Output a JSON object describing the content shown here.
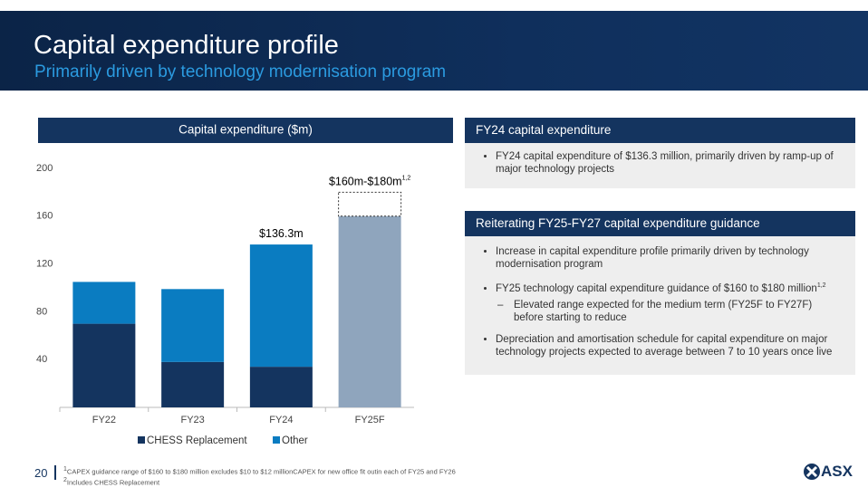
{
  "header": {
    "title": "Capital expenditure profile",
    "subtitle": "Primarily driven by technology modernisation program"
  },
  "chart_data": {
    "type": "bar",
    "stacked": true,
    "title": "Capital expenditure ($m)",
    "categories": [
      "FY22",
      "FY23",
      "FY24",
      "FY25F"
    ],
    "series": [
      {
        "name": "CHESS Replacement",
        "color": "#14345f",
        "values": [
          70,
          38,
          34,
          null
        ]
      },
      {
        "name": "Other",
        "color": "#0a7cc1",
        "values": [
          35,
          61,
          102.3,
          null
        ]
      }
    ],
    "forecast": {
      "color": "#8fa5bd",
      "values": [
        null,
        null,
        null,
        160
      ],
      "upper": [
        null,
        null,
        null,
        180
      ]
    },
    "annotations": [
      {
        "category": 2,
        "text": "$136.3m"
      },
      {
        "category": 3,
        "text": "$160m-$180m",
        "sup": "1,2"
      }
    ],
    "ylim": [
      0,
      200
    ],
    "yticks": [
      40,
      80,
      120,
      160,
      200
    ],
    "grid": false,
    "legend": "bottom"
  },
  "panels": [
    {
      "heading": "FY24 capital expenditure",
      "bullets": [
        {
          "text": "FY24 capital expenditure of $136.3 million, primarily driven by ramp-up of major technology projects"
        }
      ]
    },
    {
      "heading": "Reiterating FY25-FY27 capital expenditure guidance",
      "bullets": [
        {
          "text": "Increase in capital expenditure profile primarily driven by technology modernisation program"
        },
        {
          "text": "FY25 technology capital expenditure guidance of $160 to $180 million",
          "sup": "1,2",
          "sub": [
            "Elevated range expected for the medium term (FY25F to FY27F) before starting to reduce"
          ]
        },
        {
          "text": "Depreciation and amortisation schedule for capital expenditure on major technology projects expected to average between 7 to 10 years once live"
        }
      ]
    }
  ],
  "footer": {
    "page": "20",
    "notes": [
      {
        "marker": "1",
        "text": "CAPEX guidance range of $160 to $180 million excludes $10 to $12 millionCAPEX for new office fit outin each of FY25 and FY26"
      },
      {
        "marker": "2",
        "text": "Includes CHESS Replacement"
      }
    ],
    "logo": "ASX"
  }
}
